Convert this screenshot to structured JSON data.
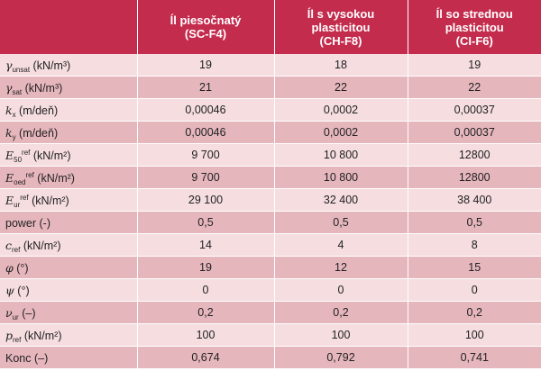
{
  "header": {
    "col1": [
      "Íl piesočnatý",
      "(SC-F4)"
    ],
    "col2": [
      "Íl s vysokou",
      "plasticitou",
      "(CH-F8)"
    ],
    "col3": [
      "Íl so strednou",
      "plasticitou",
      "(CI-F6)"
    ]
  },
  "rows": [
    {
      "sym": "γ",
      "sub": "unsat",
      "sup": "",
      "unit": " (kN/m³)",
      "vals": [
        "19",
        "18",
        "19"
      ]
    },
    {
      "sym": "γ",
      "sub": "sat",
      "sup": "",
      "unit": " (kN/m³)",
      "vals": [
        "21",
        "22",
        "22"
      ]
    },
    {
      "sym": "k",
      "sub": "x",
      "sup": "",
      "unit": " (m/deň)",
      "vals": [
        "0,00046",
        "0,0002",
        "0,00037"
      ]
    },
    {
      "sym": "k",
      "sub": "y",
      "sup": "",
      "unit": " (m/deň)",
      "vals": [
        "0,00046",
        "0,0002",
        "0,00037"
      ]
    },
    {
      "sym": "E",
      "sub": "50",
      "sup": "ref",
      "unit": " (kN/m²)",
      "vals": [
        "9 700",
        "10 800",
        "12800"
      ]
    },
    {
      "sym": "E",
      "sub": "oed",
      "sup": "ref",
      "unit": " (kN/m²)",
      "vals": [
        "9 700",
        "10 800",
        "12800"
      ]
    },
    {
      "sym": "E",
      "sub": "ur",
      "sup": "ref",
      "unit": " (kN/m²)",
      "vals": [
        "29 100",
        "32 400",
        "38 400"
      ]
    },
    {
      "sym": "",
      "sub": "",
      "sup": "",
      "unit": "power (-)",
      "vals": [
        "0,5",
        "0,5",
        "0,5"
      ]
    },
    {
      "sym": "c",
      "sub": "ref",
      "sup": "",
      "unit": "  (kN/m²)",
      "vals": [
        "14",
        "4",
        "8"
      ]
    },
    {
      "sym": "φ",
      "sub": "",
      "sup": "",
      "unit": " (°)",
      "vals": [
        "19",
        "12",
        "15"
      ]
    },
    {
      "sym": "ψ",
      "sub": "",
      "sup": "",
      "unit": " (°)",
      "vals": [
        "0",
        "0",
        "0"
      ]
    },
    {
      "sym": "ν",
      "sub": "ur",
      "sup": "",
      "unit": " (–)",
      "vals": [
        "0,2",
        "0,2",
        "0,2"
      ]
    },
    {
      "sym": "p",
      "sub": "ref",
      "sup": "",
      "unit": " (kN/m²)",
      "vals": [
        "100",
        "100",
        "100"
      ]
    },
    {
      "sym": "",
      "sub": "",
      "sup": "",
      "unit": "Konc (–)",
      "vals": [
        "0,674",
        "0,792",
        "0,741"
      ]
    }
  ]
}
